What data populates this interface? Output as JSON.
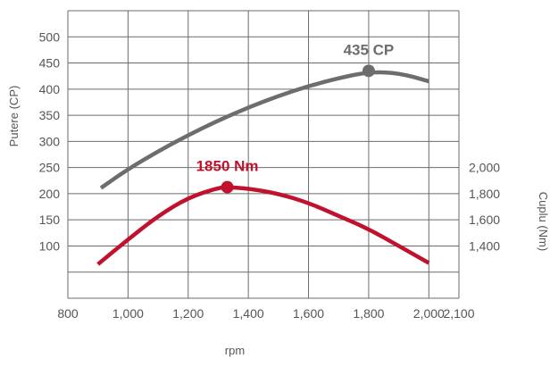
{
  "colors": {
    "power": "#6d6d6d",
    "torque": "#c0122c",
    "grid": "#6b6b6b",
    "text": "#555555"
  },
  "chart_data": {
    "type": "line",
    "title": "",
    "xlabel": "rpm",
    "ylabel_left": "Putere (CP)",
    "ylabel_right": "Cuplu (Nm)",
    "xlim": [
      800,
      2100
    ],
    "x_ticks": [
      800,
      1000,
      1200,
      1400,
      1600,
      1800,
      2000,
      2100
    ],
    "x_tick_labels": [
      "800",
      "1,000",
      "1,200",
      "1,400",
      "1,600",
      "1,800",
      "2,000",
      "2,100"
    ],
    "ylim_left": [
      0,
      550
    ],
    "y_left_ticks": [
      100,
      150,
      200,
      250,
      300,
      350,
      400,
      450,
      500
    ],
    "y_left_tick_labels": [
      "100",
      "150",
      "200",
      "250",
      "300",
      "350",
      "400",
      "450",
      "500"
    ],
    "y_right_ticks": [
      1400,
      1600,
      1800,
      2000
    ],
    "y_right_tick_labels": [
      "1,400",
      "1,600",
      "1,800",
      "2,000"
    ],
    "grid": true,
    "series": [
      {
        "key": "power",
        "axis": "left",
        "color": "#6d6d6d",
        "x": [
          910,
          1000,
          1100,
          1200,
          1300,
          1400,
          1500,
          1600,
          1700,
          1800,
          1900,
          2000
        ],
        "y": [
          211,
          247,
          281,
          312,
          340,
          365,
          387,
          406,
          421,
          433,
          431,
          415
        ],
        "peak": {
          "x": 1800,
          "y": 435,
          "label": "435 CP"
        }
      },
      {
        "key": "torque",
        "axis": "right",
        "color": "#c0122c",
        "x": [
          900,
          1000,
          1100,
          1200,
          1300,
          1330,
          1400,
          1500,
          1600,
          1700,
          1800,
          1900,
          2000
        ],
        "y": [
          1260,
          1450,
          1630,
          1770,
          1845,
          1850,
          1840,
          1800,
          1730,
          1630,
          1530,
          1400,
          1270
        ],
        "peak": {
          "x": 1330,
          "y": 1850,
          "label": "1850 Nm"
        }
      }
    ]
  }
}
